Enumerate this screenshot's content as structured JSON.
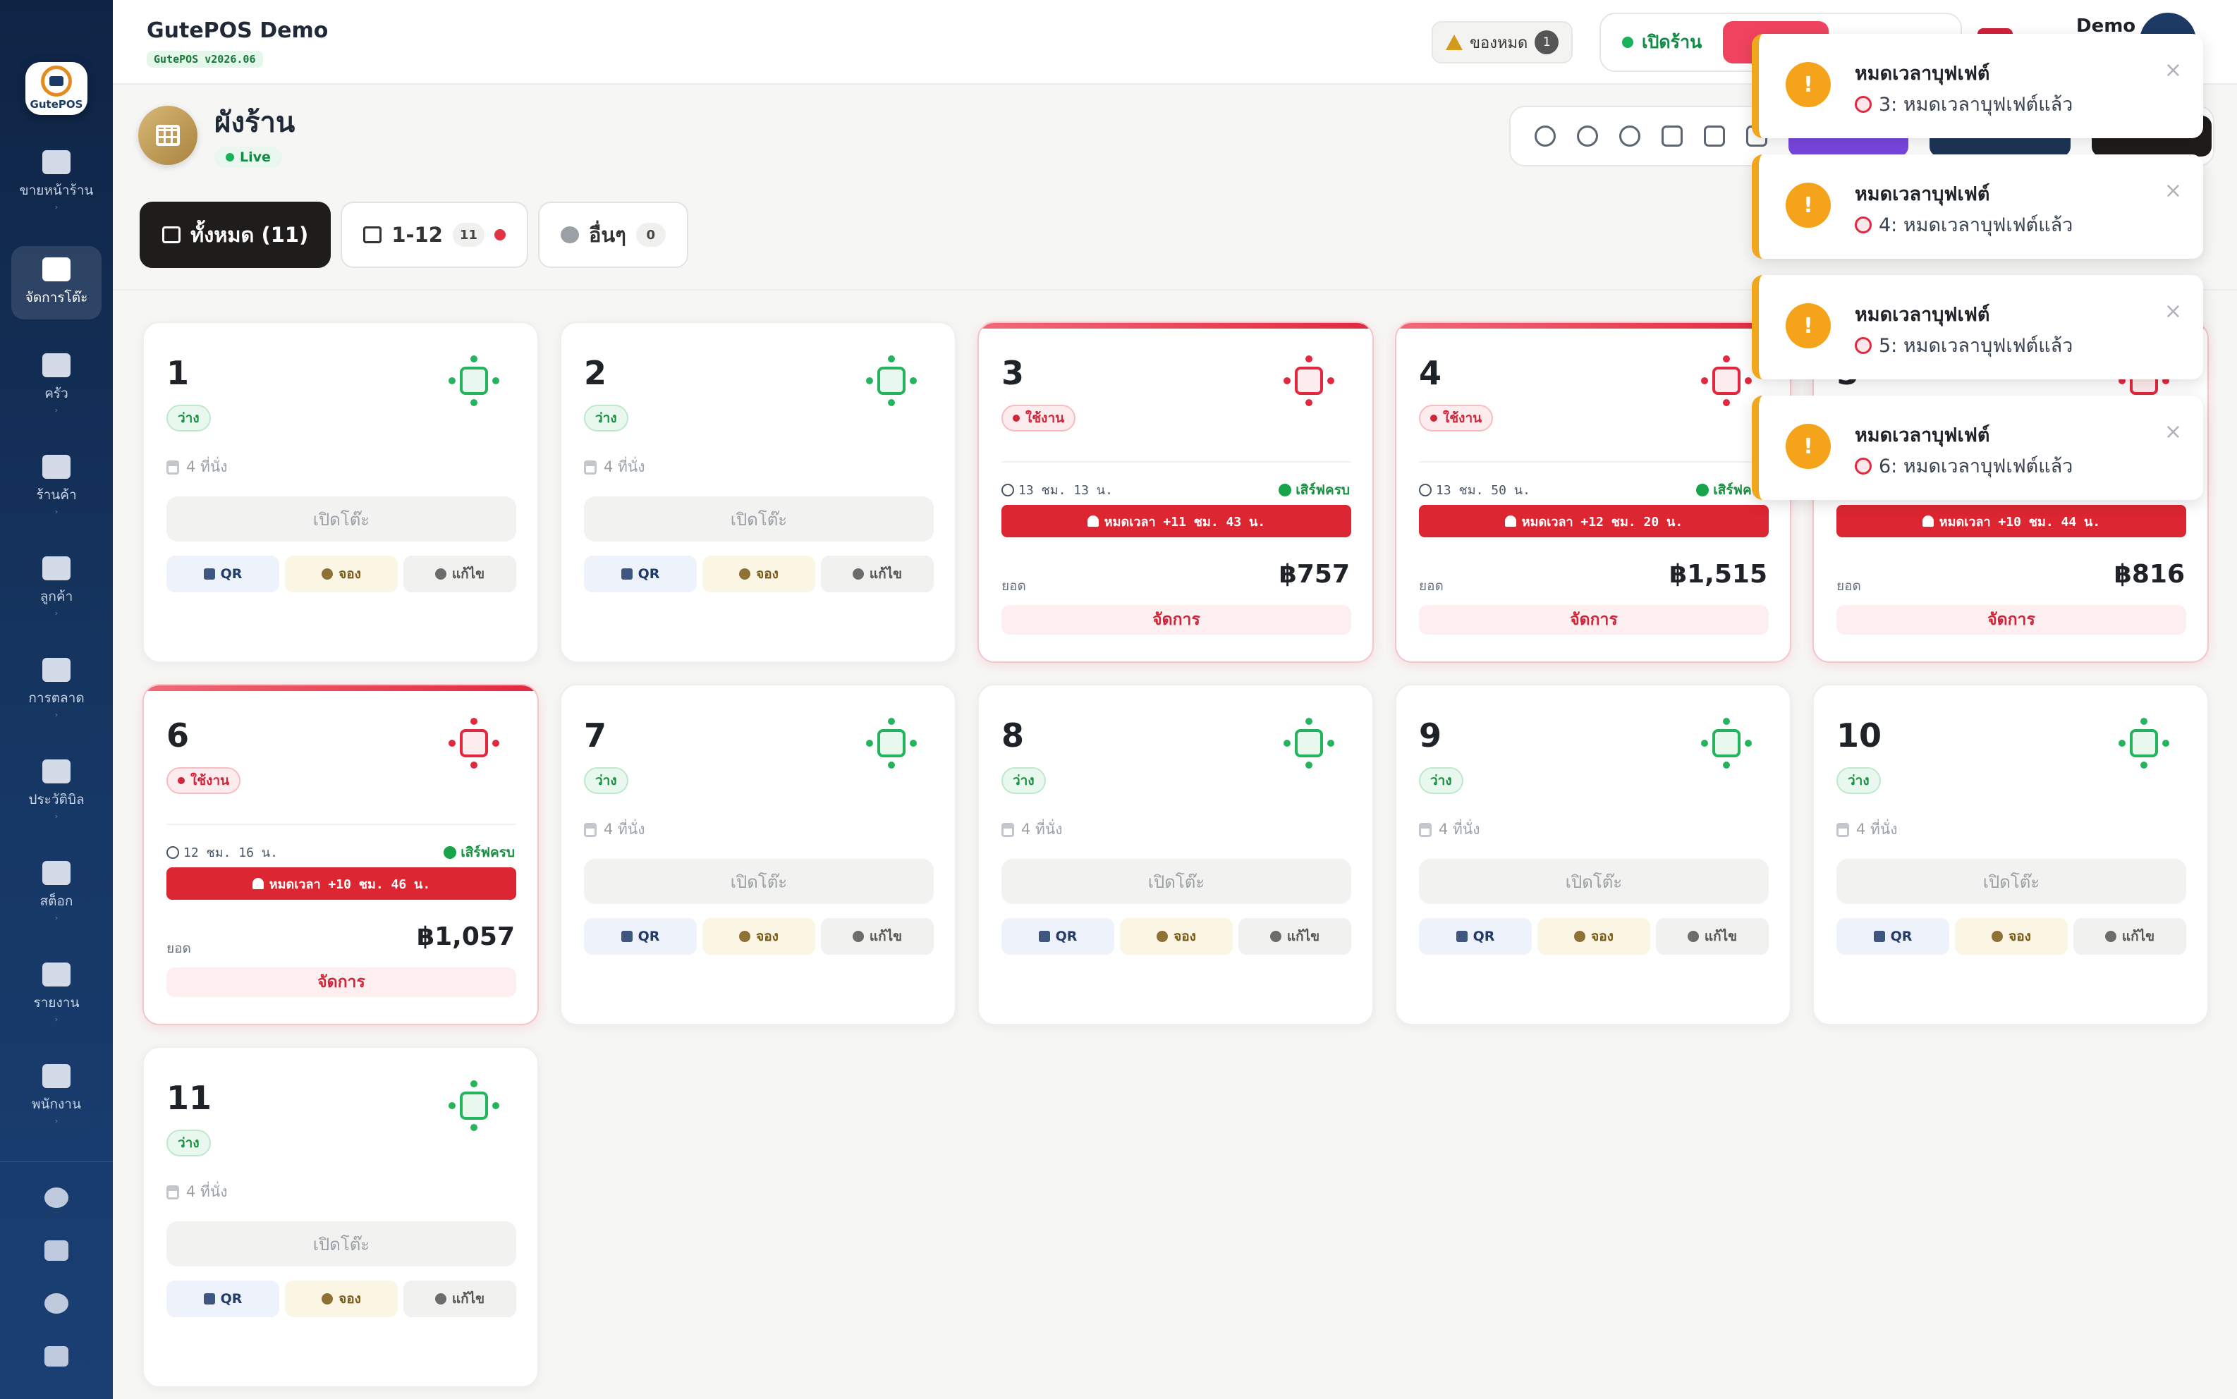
{
  "sidebar": {
    "logo_text": "GutePOS",
    "items": [
      {
        "label": "ขายหน้าร้าน",
        "icon": "cash-register-icon",
        "active": false
      },
      {
        "label": "จัดการโต๊ะ",
        "icon": "sofa-icon",
        "active": true
      },
      {
        "label": "ครัว",
        "icon": "chef-icon",
        "active": false
      },
      {
        "label": "ร้านค้า",
        "icon": "store-icon",
        "active": false
      },
      {
        "label": "ลูกค้า",
        "icon": "users-icon",
        "active": false
      },
      {
        "label": "การตลาด",
        "icon": "megaphone-icon",
        "active": false
      },
      {
        "label": "ประวัติบิล",
        "icon": "receipt-icon",
        "active": false
      },
      {
        "label": "สต็อก",
        "icon": "warehouse-icon",
        "active": false
      },
      {
        "label": "รายงาน",
        "icon": "chart-line-icon",
        "active": false
      },
      {
        "label": "พนักงาน",
        "icon": "team-icon",
        "active": false
      }
    ],
    "tools": [
      "plus-circle-icon",
      "book-icon",
      "sync-icon",
      "logout-icon"
    ]
  },
  "topbar": {
    "app_title": "GutePOS Demo",
    "version": "GutePOS v2026.06",
    "stock_out_label": "ของหมด",
    "stock_out_count": "1",
    "shop_status_label": "เปิดร้าน",
    "user_name": "Demo"
  },
  "page": {
    "title": "ผังร้าน",
    "live_label": "Live"
  },
  "tabs": [
    {
      "label": "ทั้งหมด (11)",
      "count": "",
      "active": true
    },
    {
      "label": "1-12",
      "count": "11",
      "active": false
    },
    {
      "label": "อื่นๆ",
      "count": "0",
      "active": false
    }
  ],
  "labels": {
    "open_table": "เปิดโต๊ะ",
    "seats": "4 ที่นั่ง",
    "qr": "QR",
    "book": "จอง",
    "edit": "แก้ไข",
    "served": "เสิร์ฟครบ",
    "total": "ยอด",
    "manage": "จัดการ",
    "status_free": "ว่าง",
    "status_busy": "ใช้งาน"
  },
  "tables": [
    {
      "num": "1",
      "busy": false
    },
    {
      "num": "2",
      "busy": false
    },
    {
      "num": "3",
      "busy": true,
      "duration": "13 ชม. 13 น.",
      "alarm": "หมดเวลา +11 ชม. 43 น.",
      "total": "฿757"
    },
    {
      "num": "4",
      "busy": true,
      "duration": "13 ชม. 50 น.",
      "alarm": "หมดเวลา +12 ชม. 20 น.",
      "total": "฿1,515"
    },
    {
      "num": "5",
      "busy": true,
      "duration": "",
      "alarm": "หมดเวลา +10 ชม. 44 น.",
      "total": "฿816"
    },
    {
      "num": "6",
      "busy": true,
      "duration": "12 ชม. 16 น.",
      "alarm": "หมดเวลา +10 ชม. 46 น.",
      "total": "฿1,057"
    },
    {
      "num": "7",
      "busy": false
    },
    {
      "num": "8",
      "busy": false
    },
    {
      "num": "9",
      "busy": false
    },
    {
      "num": "10",
      "busy": false
    },
    {
      "num": "11",
      "busy": false
    }
  ],
  "toasts": [
    {
      "title": "หมดเวลาบุฟเฟต์",
      "message": "3: หมดเวลาบุฟเฟต์แล้ว"
    },
    {
      "title": "หมดเวลาบุฟเฟต์",
      "message": "4: หมดเวลาบุฟเฟต์แล้ว"
    },
    {
      "title": "หมดเวลาบุฟเฟต์",
      "message": "5: หมดเวลาบุฟเฟต์แล้ว"
    },
    {
      "title": "หมดเวลาบุฟเฟต์",
      "message": "6: หมดเวลาบุฟเฟต์แล้ว"
    }
  ],
  "colors": {
    "sidebar": "#163764",
    "free": "#26b35e",
    "busy": "#e2283e",
    "alarm": "#dc2631",
    "toast_accent": "#f0a71c"
  }
}
